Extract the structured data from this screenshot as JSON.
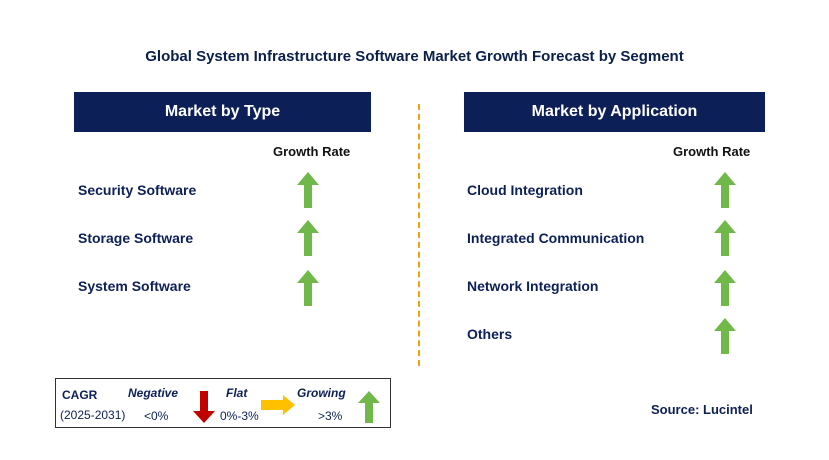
{
  "title": "Global System Infrastructure Software Market Growth Forecast by Segment",
  "left_panel": {
    "header": "Market by Type",
    "growth_label": "Growth Rate",
    "items": [
      {
        "label": "Security Software",
        "trend": "growing"
      },
      {
        "label": "Storage Software",
        "trend": "growing"
      },
      {
        "label": "System Software",
        "trend": "growing"
      }
    ]
  },
  "right_panel": {
    "header": "Market by Application",
    "growth_label": "Growth Rate",
    "items": [
      {
        "label": "Cloud Integration",
        "trend": "growing"
      },
      {
        "label": "Integrated Communication",
        "trend": "growing"
      },
      {
        "label": "Network Integration",
        "trend": "growing"
      },
      {
        "label": "Others",
        "trend": "growing"
      }
    ]
  },
  "legend": {
    "cagr": "CAGR",
    "period": "(2025-2031)",
    "negative": {
      "label": "Negative",
      "range": "<0%",
      "icon": "down-arrow-icon",
      "color": "#c00000"
    },
    "flat": {
      "label": "Flat",
      "range": "0%-3%",
      "icon": "right-arrow-icon",
      "color": "#ffc000"
    },
    "growing": {
      "label": "Growing",
      "range": ">3%",
      "icon": "up-arrow-icon",
      "color": "#70b84a"
    }
  },
  "source": "Source: Lucintel",
  "colors": {
    "header_bg": "#0d1f57",
    "divider": "#f0a30a",
    "up_arrow": "#70b84a"
  }
}
